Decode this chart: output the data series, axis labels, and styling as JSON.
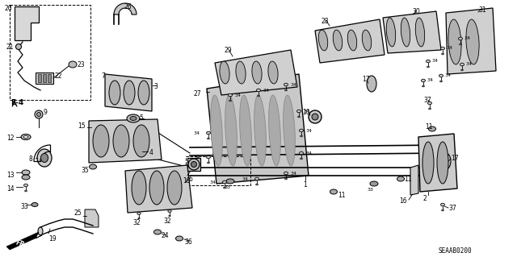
{
  "bg_color": "#ffffff",
  "diagram_code": "SEAAB0200",
  "line_color": "#000000",
  "gray_fill": "#c8c8c8",
  "dark_gray": "#888888",
  "mid_gray": "#aaaaaa"
}
